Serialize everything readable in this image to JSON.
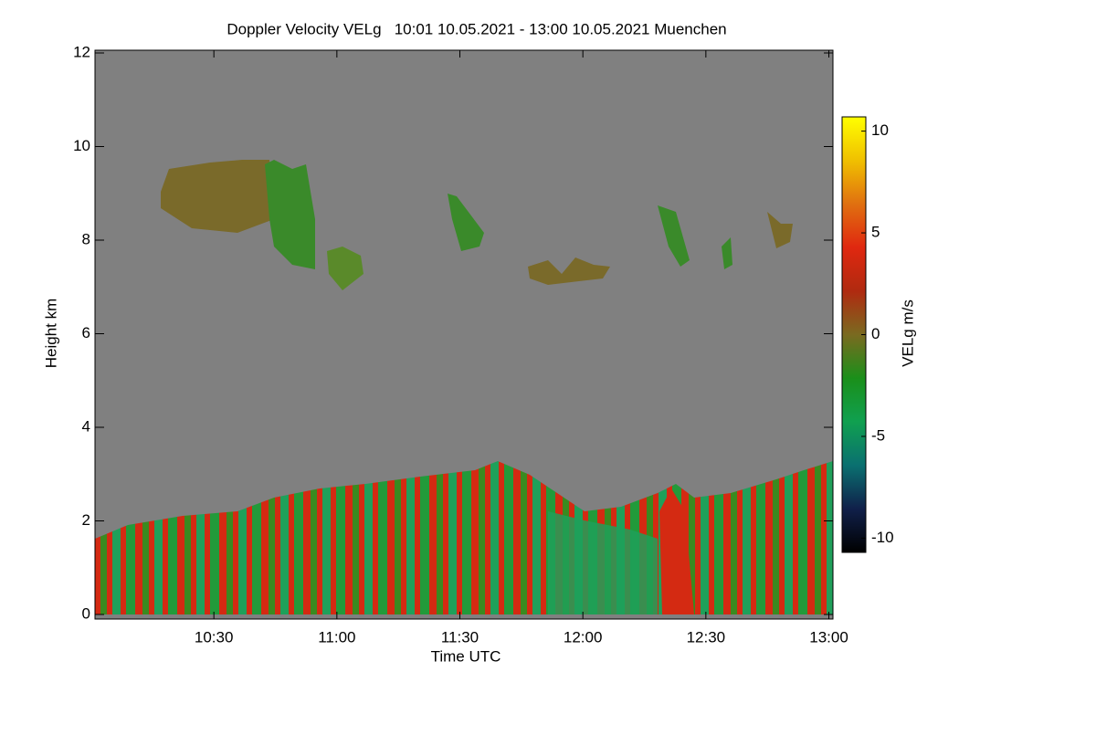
{
  "chart_data": {
    "type": "heatmap",
    "title": "Doppler Velocity VELg   10:01 10.05.2021 - 13:00 10.05.2021 Muenchen",
    "x_label": "Time UTC",
    "y_label": "Height km",
    "xlim": [
      601,
      781
    ],
    "xticks": [
      {
        "value": 630,
        "label": "10:30"
      },
      {
        "value": 660,
        "label": "11:00"
      },
      {
        "value": 690,
        "label": "11:30"
      },
      {
        "value": 720,
        "label": "12:00"
      },
      {
        "value": 750,
        "label": "12:30"
      },
      {
        "value": 780,
        "label": "13:00"
      }
    ],
    "ylim": [
      0,
      12
    ],
    "yticks": [
      0,
      2,
      4,
      6,
      8,
      10,
      12
    ],
    "background": "#808080",
    "colorbar": {
      "label": "VELg m/s",
      "lim": [
        -10.7,
        10.7
      ],
      "ticks": [
        10,
        5,
        0,
        -5,
        -10
      ],
      "colormap": [
        "#000000",
        "#10204a",
        "#0a7070",
        "#10a050",
        "#1a8f1a",
        "#7a6a20",
        "#b02a10",
        "#e02810",
        "#e07010",
        "#f0c000",
        "#ffff00"
      ]
    }
  }
}
